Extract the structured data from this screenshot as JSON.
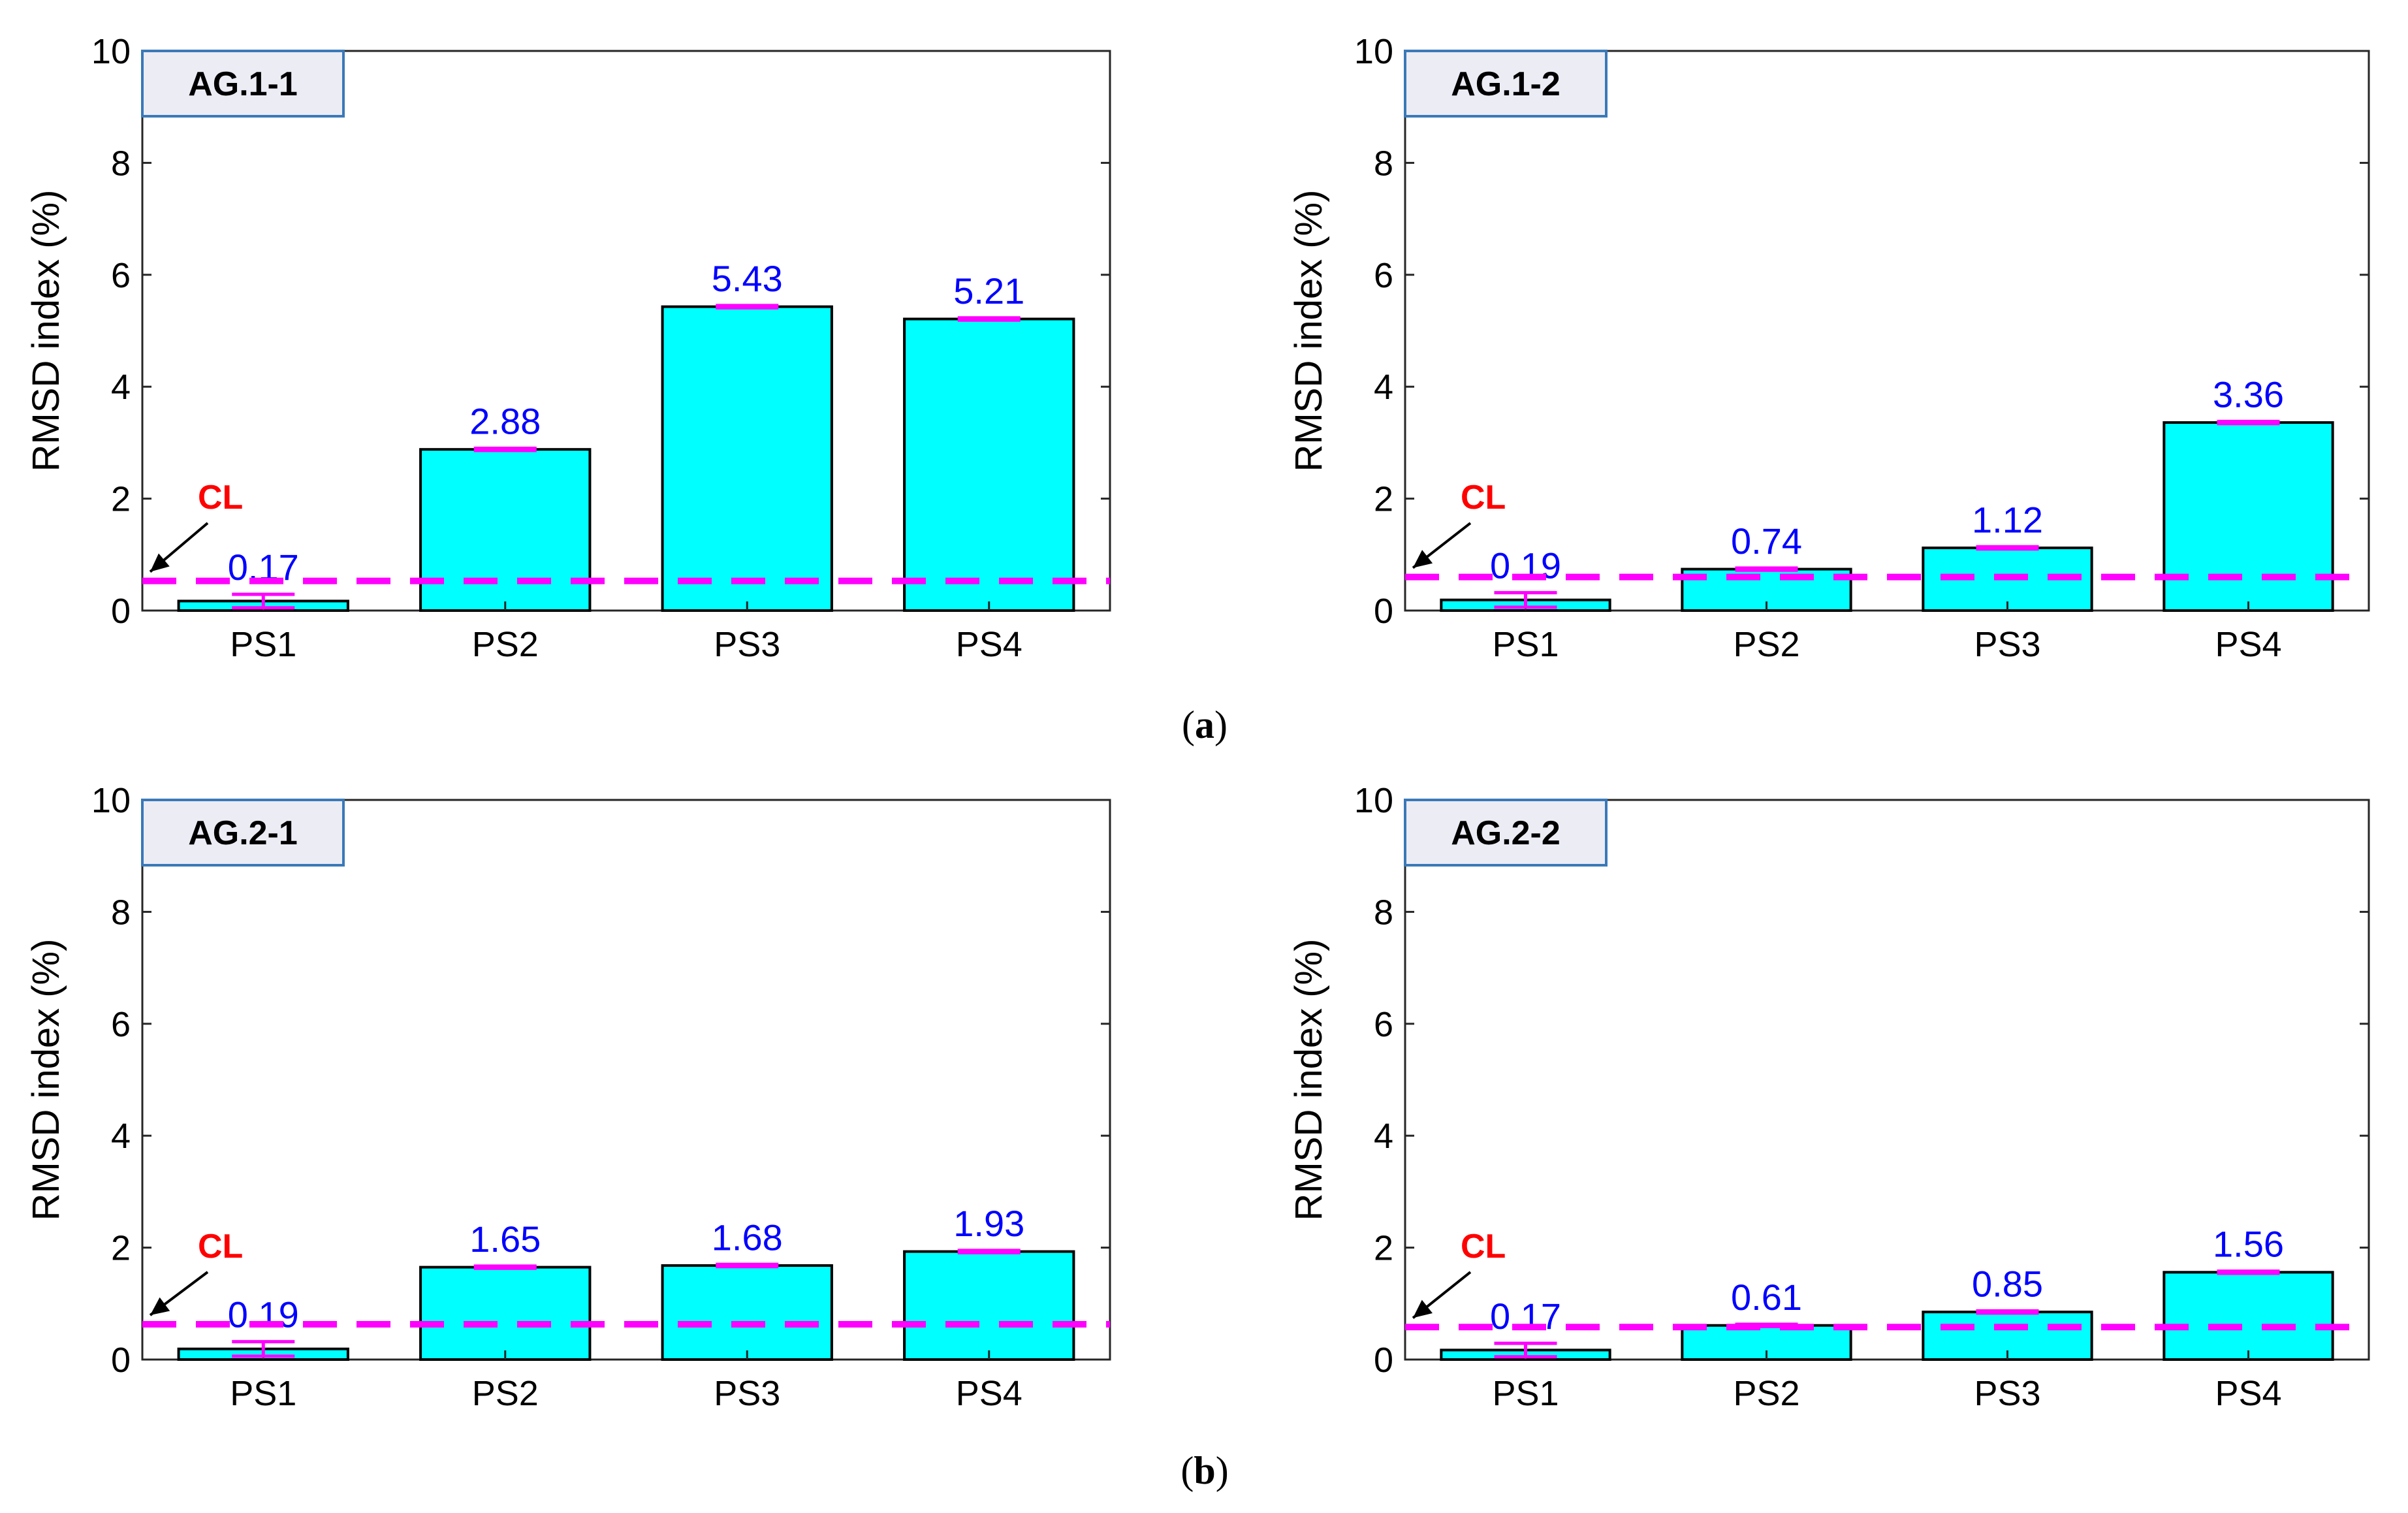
{
  "colors": {
    "bar_fill": "#00ffff",
    "bar_stroke": "#000000",
    "value_label": "#0000ff",
    "control_limit": "#ff00ff",
    "cl_text": "#ff0000",
    "title_box_fill": "#ececf5",
    "title_box_stroke": "#3a79b8",
    "axis": "#262626"
  },
  "panel_captions": {
    "a": {
      "open": "(",
      "letter": "a",
      "close": ")"
    },
    "b": {
      "open": "(",
      "letter": "b",
      "close": ")"
    }
  },
  "chart_data": [
    {
      "type": "bar",
      "title": "AG.1-1",
      "categories": [
        "PS1",
        "PS2",
        "PS3",
        "PS4"
      ],
      "values": [
        0.17,
        2.88,
        5.43,
        5.21
      ],
      "value_labels": [
        "0.17",
        "2.88",
        "5.43",
        "5.21"
      ],
      "error_bars": [
        0.12,
        0.02,
        0.02,
        0.02
      ],
      "control_limit": 0.53,
      "control_limit_label": "CL",
      "xlabel": "",
      "ylabel": "RMSD index (%)",
      "ylim": [
        0,
        10
      ],
      "yticks": [
        0,
        2,
        4,
        6,
        8,
        10
      ],
      "ytick_labels": [
        "0",
        "2",
        "4",
        "6",
        "8",
        "10"
      ]
    },
    {
      "type": "bar",
      "title": "AG.1-2",
      "categories": [
        "PS1",
        "PS2",
        "PS3",
        "PS4"
      ],
      "values": [
        0.19,
        0.74,
        1.12,
        3.36
      ],
      "value_labels": [
        "0.19",
        "0.74",
        "1.12",
        "3.36"
      ],
      "error_bars": [
        0.13,
        0.02,
        0.02,
        0.02
      ],
      "control_limit": 0.6,
      "control_limit_label": "CL",
      "xlabel": "",
      "ylabel": "RMSD index (%)",
      "ylim": [
        0,
        10
      ],
      "yticks": [
        0,
        2,
        4,
        6,
        8,
        10
      ],
      "ytick_labels": [
        "0",
        "2",
        "4",
        "6",
        "8",
        "10"
      ]
    },
    {
      "type": "bar",
      "title": "AG.2-1",
      "categories": [
        "PS1",
        "PS2",
        "PS3",
        "PS4"
      ],
      "values": [
        0.19,
        1.65,
        1.68,
        1.93
      ],
      "value_labels": [
        "0.19",
        "1.65",
        "1.68",
        "1.93"
      ],
      "error_bars": [
        0.13,
        0.02,
        0.02,
        0.02
      ],
      "control_limit": 0.63,
      "control_limit_label": "CL",
      "xlabel": "",
      "ylabel": "RMSD index (%)",
      "ylim": [
        0,
        10
      ],
      "yticks": [
        0,
        2,
        4,
        6,
        8,
        10
      ],
      "ytick_labels": [
        "0",
        "2",
        "4",
        "6",
        "8",
        "10"
      ]
    },
    {
      "type": "bar",
      "title": "AG.2-2",
      "categories": [
        "PS1",
        "PS2",
        "PS3",
        "PS4"
      ],
      "values": [
        0.17,
        0.61,
        0.85,
        1.56
      ],
      "value_labels": [
        "0.17",
        "0.61",
        "0.85",
        "1.56"
      ],
      "error_bars": [
        0.12,
        0.02,
        0.02,
        0.02
      ],
      "control_limit": 0.58,
      "control_limit_label": "CL",
      "xlabel": "",
      "ylabel": "RMSD index (%)",
      "ylim": [
        0,
        10
      ],
      "yticks": [
        0,
        2,
        4,
        6,
        8,
        10
      ],
      "ytick_labels": [
        "0",
        "2",
        "4",
        "6",
        "8",
        "10"
      ]
    }
  ]
}
